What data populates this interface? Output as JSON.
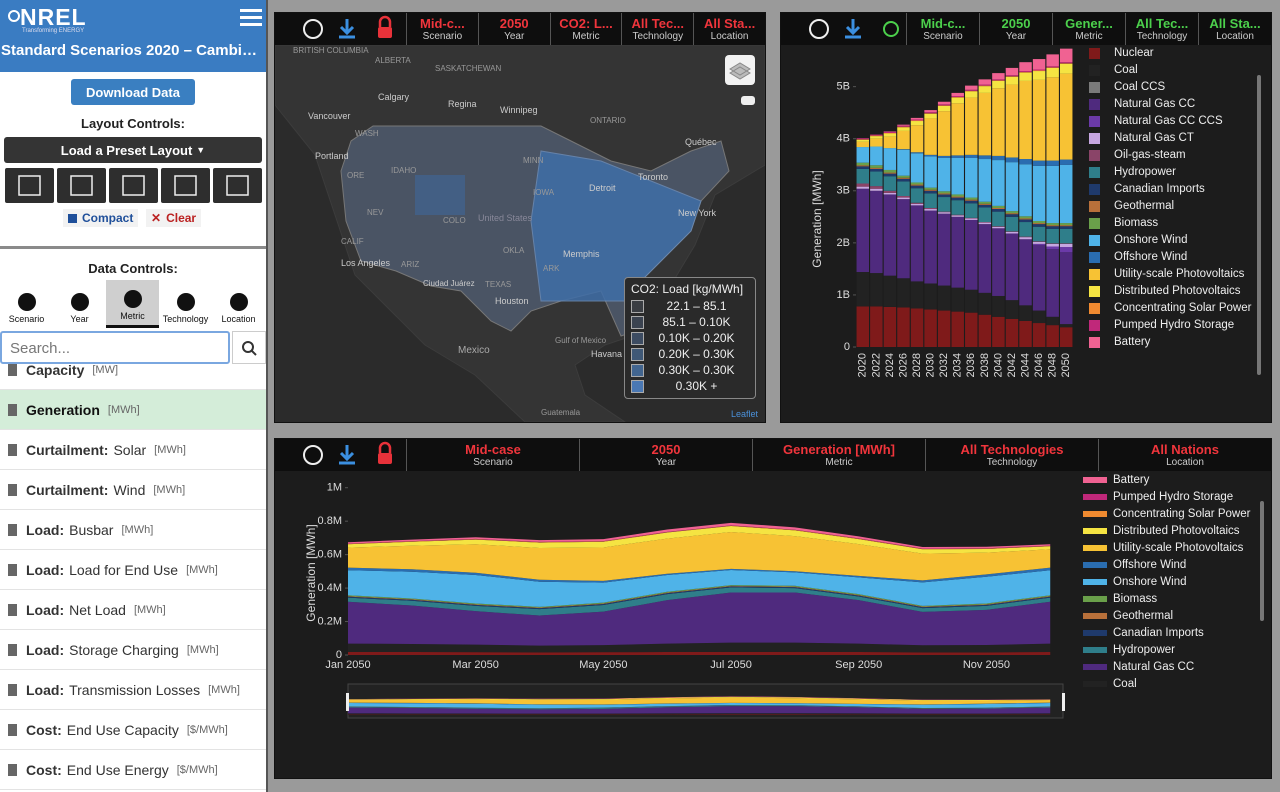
{
  "sidebar": {
    "logo": "NREL",
    "tagline": "Transforming ENERGY",
    "title": "Standard Scenarios 2020 – Cambi…",
    "download": "Download Data",
    "layout_heading": "Layout Controls:",
    "preset": "Load a Preset Layout",
    "compact": "Compact",
    "clear": "Clear",
    "data_heading": "Data Controls:",
    "tabs": [
      "Scenario",
      "Year",
      "Metric",
      "Technology",
      "Location"
    ],
    "search_placeholder": "Search...",
    "metrics": [
      {
        "group": "Capacity",
        "unit": "[MW]"
      },
      {
        "group": "Generation",
        "unit": "[MWh]"
      },
      {
        "group": "Curtailment:",
        "label": "Solar",
        "unit": "[MWh]"
      },
      {
        "group": "Curtailment:",
        "label": "Wind",
        "unit": "[MWh]"
      },
      {
        "group": "Load:",
        "label": "Busbar",
        "unit": "[MWh]"
      },
      {
        "group": "Load:",
        "label": "Load for End Use",
        "unit": "[MWh]"
      },
      {
        "group": "Load:",
        "label": "Net Load",
        "unit": "[MWh]"
      },
      {
        "group": "Load:",
        "label": "Storage Charging",
        "unit": "[MWh]"
      },
      {
        "group": "Load:",
        "label": "Transmission Losses",
        "unit": "[MWh]"
      },
      {
        "group": "Cost:",
        "label": "End Use Capacity",
        "unit": "[$/MWh]"
      },
      {
        "group": "Cost:",
        "label": "End Use Energy",
        "unit": "[$/MWh]"
      }
    ]
  },
  "map_panel": {
    "header": [
      {
        "value": "Mid-c...",
        "label": "Scenario"
      },
      {
        "value": "2050",
        "label": "Year"
      },
      {
        "value": "CO2: L...",
        "label": "Metric"
      },
      {
        "value": "All Tec...",
        "label": "Technology"
      },
      {
        "value": "All Sta...",
        "label": "Location"
      }
    ],
    "legend": {
      "title": "CO2: Load [kg/MWh]",
      "bins": [
        {
          "label": "22.1 – 85.1",
          "color": "#3a3d42"
        },
        {
          "label": "85.1 – 0.10K",
          "color": "#3b4350"
        },
        {
          "label": "0.10K – 0.20K",
          "color": "#3d4c62"
        },
        {
          "label": "0.20K – 0.30K",
          "color": "#3f5876"
        },
        {
          "label": "0.30K – 0.30K",
          "color": "#42658f"
        },
        {
          "label": "0.30K +",
          "color": "#4a78b4"
        }
      ]
    },
    "labels": [
      "BRITISH COLUMBIA",
      "ALBERTA",
      "SASKATCHEWAN",
      "Calgary",
      "Regina",
      "Winnipeg",
      "ONTARIO",
      "Vancouver",
      "Québec",
      "Portland",
      "Toronto",
      "Detroit",
      "New York",
      "United States",
      "Los Angeles",
      "Memphis",
      "Houston",
      "Ciudad Juárez",
      "Gulf of Mexico",
      "Mexico",
      "Havana",
      "Guatemala",
      "WASH",
      "ORE",
      "IDAHO",
      "NEV",
      "CALIF",
      "ARIZ",
      "COLO",
      "TEXAS",
      "OKLA",
      "MINN",
      "IOWA",
      "ARK"
    ],
    "attribution": "Leaflet"
  },
  "bar_panel": {
    "header": [
      {
        "value": "Mid-c...",
        "label": "Scenario"
      },
      {
        "value": "2050",
        "label": "Year"
      },
      {
        "value": "Gener...",
        "label": "Metric"
      },
      {
        "value": "All Tec...",
        "label": "Technology"
      },
      {
        "value": "All Sta...",
        "label": "Location"
      }
    ]
  },
  "area_panel": {
    "header": [
      {
        "value": "Mid-case",
        "label": "Scenario"
      },
      {
        "value": "2050",
        "label": "Year"
      },
      {
        "value": "Generation [MWh]",
        "label": "Metric"
      },
      {
        "value": "All Technologies",
        "label": "Technology"
      },
      {
        "value": "All Nations",
        "label": "Location"
      }
    ]
  },
  "chart_data": [
    {
      "type": "stacked-bar",
      "ylabel": "Generation [MWh]",
      "categories": [
        "2020",
        "2022",
        "2024",
        "2026",
        "2028",
        "2030",
        "2032",
        "2034",
        "2036",
        "2038",
        "2040",
        "2042",
        "2044",
        "2046",
        "2048",
        "2050"
      ],
      "ylim": [
        0,
        5800000000.0
      ],
      "yticks": [
        0,
        {
          "value": 1000000000.0,
          "label": "1B"
        },
        {
          "value": 2000000000.0,
          "label": "2B"
        },
        {
          "value": 3000000000.0,
          "label": "3B"
        },
        {
          "value": 4000000000.0,
          "label": "4B"
        },
        {
          "value": 5000000000.0,
          "label": "5B"
        }
      ],
      "grid": false,
      "series": [
        {
          "name": "Nuclear",
          "color": "#7f1a1a",
          "values": [
            780000000.0,
            780000000.0,
            770000000.0,
            760000000.0,
            740000000.0,
            720000000.0,
            700000000.0,
            680000000.0,
            660000000.0,
            620000000.0,
            580000000.0,
            540000000.0,
            500000000.0,
            460000000.0,
            420000000.0,
            380000000.0
          ]
        },
        {
          "name": "Coal",
          "color": "#222222",
          "values": [
            660000000.0,
            640000000.0,
            600000000.0,
            560000000.0,
            520000000.0,
            500000000.0,
            480000000.0,
            460000000.0,
            440000000.0,
            420000000.0,
            400000000.0,
            360000000.0,
            300000000.0,
            240000000.0,
            160000000.0,
            60000000.0
          ]
        },
        {
          "name": "Coal CCS",
          "color": "#7a7a7a",
          "values": [
            0,
            0,
            0,
            0,
            0,
            0,
            0,
            0,
            0,
            0,
            0,
            0,
            0,
            0,
            0,
            0
          ]
        },
        {
          "name": "Natural Gas CC",
          "color": "#4f2a7e",
          "values": [
            1600000000.0,
            1580000000.0,
            1560000000.0,
            1520000000.0,
            1460000000.0,
            1400000000.0,
            1380000000.0,
            1360000000.0,
            1340000000.0,
            1320000000.0,
            1300000000.0,
            1280000000.0,
            1260000000.0,
            1260000000.0,
            1300000000.0,
            1380000000.0
          ]
        },
        {
          "name": "Natural Gas CC CCS",
          "color": "#6b3aa8",
          "values": [
            0,
            0,
            0,
            0,
            0,
            0,
            0,
            0,
            0,
            0,
            0,
            0,
            10000000.0,
            20000000.0,
            50000000.0,
            100000000.0
          ]
        },
        {
          "name": "Natural Gas CT",
          "color": "#c6a6e0",
          "values": [
            40000000.0,
            40000000.0,
            30000000.0,
            30000000.0,
            30000000.0,
            30000000.0,
            30000000.0,
            30000000.0,
            30000000.0,
            30000000.0,
            30000000.0,
            30000000.0,
            40000000.0,
            40000000.0,
            50000000.0,
            60000000.0
          ]
        },
        {
          "name": "Oil-gas-steam",
          "color": "#8a4468",
          "values": [
            60000000.0,
            50000000.0,
            40000000.0,
            30000000.0,
            20000000.0,
            20000000.0,
            10000000.0,
            10000000.0,
            10000000.0,
            10000000.0,
            10000000.0,
            10000000.0,
            10000000.0,
            10000000.0,
            10000000.0,
            10000000.0
          ]
        },
        {
          "name": "Hydropower",
          "color": "#2f7e8a",
          "values": [
            280000000.0,
            280000000.0,
            280000000.0,
            280000000.0,
            280000000.0,
            280000000.0,
            280000000.0,
            280000000.0,
            280000000.0,
            280000000.0,
            280000000.0,
            280000000.0,
            280000000.0,
            280000000.0,
            280000000.0,
            280000000.0
          ]
        },
        {
          "name": "Canadian Imports",
          "color": "#1f3a6c",
          "values": [
            50000000.0,
            50000000.0,
            50000000.0,
            50000000.0,
            50000000.0,
            50000000.0,
            50000000.0,
            50000000.0,
            50000000.0,
            50000000.0,
            50000000.0,
            50000000.0,
            50000000.0,
            50000000.0,
            50000000.0,
            50000000.0
          ]
        },
        {
          "name": "Geothermal",
          "color": "#b8703a",
          "values": [
            20000000.0,
            20000000.0,
            20000000.0,
            20000000.0,
            20000000.0,
            20000000.0,
            20000000.0,
            20000000.0,
            20000000.0,
            20000000.0,
            20000000.0,
            20000000.0,
            20000000.0,
            20000000.0,
            20000000.0,
            20000000.0
          ]
        },
        {
          "name": "Biomass",
          "color": "#6aa04a",
          "values": [
            50000000.0,
            50000000.0,
            50000000.0,
            40000000.0,
            40000000.0,
            40000000.0,
            40000000.0,
            40000000.0,
            40000000.0,
            40000000.0,
            40000000.0,
            40000000.0,
            40000000.0,
            40000000.0,
            40000000.0,
            40000000.0
          ]
        },
        {
          "name": "Onshore Wind",
          "color": "#4fb3e8",
          "values": [
            300000000.0,
            360000000.0,
            420000000.0,
            500000000.0,
            560000000.0,
            600000000.0,
            640000000.0,
            700000000.0,
            760000000.0,
            820000000.0,
            880000000.0,
            940000000.0,
            1000000000.0,
            1060000000.0,
            1100000000.0,
            1120000000.0
          ]
        },
        {
          "name": "Offshore Wind",
          "color": "#2a6db0",
          "values": [
            0,
            0,
            0,
            10000000.0,
            20000000.0,
            30000000.0,
            40000000.0,
            50000000.0,
            60000000.0,
            70000000.0,
            80000000.0,
            90000000.0,
            100000000.0,
            100000000.0,
            100000000.0,
            100000000.0
          ]
        },
        {
          "name": "Utility-scale Photovoltaics",
          "color": "#f7c234",
          "values": [
            100000000.0,
            150000000.0,
            220000000.0,
            350000000.0,
            520000000.0,
            700000000.0,
            860000000.0,
            1000000000.0,
            1100000000.0,
            1200000000.0,
            1300000000.0,
            1400000000.0,
            1500000000.0,
            1550000000.0,
            1600000000.0,
            1650000000.0
          ]
        },
        {
          "name": "Distributed Photovoltaics",
          "color": "#f5e442",
          "values": [
            40000000.0,
            50000000.0,
            60000000.0,
            70000000.0,
            80000000.0,
            90000000.0,
            100000000.0,
            110000000.0,
            120000000.0,
            130000000.0,
            140000000.0,
            150000000.0,
            160000000.0,
            170000000.0,
            180000000.0,
            190000000.0
          ]
        },
        {
          "name": "Concentrating Solar Power",
          "color": "#f08a30",
          "values": [
            10000000.0,
            10000000.0,
            10000000.0,
            10000000.0,
            10000000.0,
            10000000.0,
            10000000.0,
            10000000.0,
            10000000.0,
            10000000.0,
            10000000.0,
            10000000.0,
            10000000.0,
            10000000.0,
            10000000.0,
            10000000.0
          ]
        },
        {
          "name": "Pumped Hydro Storage",
          "color": "#c0287a",
          "values": [
            20000000.0,
            20000000.0,
            20000000.0,
            20000000.0,
            20000000.0,
            20000000.0,
            20000000.0,
            20000000.0,
            20000000.0,
            20000000.0,
            20000000.0,
            20000000.0,
            20000000.0,
            20000000.0,
            20000000.0,
            20000000.0
          ]
        },
        {
          "name": "Battery",
          "color": "#f06292",
          "values": [
            0,
            0,
            10000000.0,
            20000000.0,
            30000000.0,
            40000000.0,
            50000000.0,
            60000000.0,
            80000000.0,
            100000000.0,
            120000000.0,
            140000000.0,
            170000000.0,
            200000000.0,
            230000000.0,
            260000000.0
          ]
        }
      ]
    },
    {
      "type": "stacked-area",
      "ylabel": "Generation [MWh]",
      "categories": [
        "Jan 2050",
        null,
        "Mar 2050",
        null,
        "May 2050",
        null,
        "Jul 2050",
        null,
        "Sep 2050",
        null,
        "Nov 2050",
        null
      ],
      "ylim": [
        0,
        1100000
      ],
      "yticks": [
        0,
        {
          "value": 200000,
          "label": "0.2M"
        },
        {
          "value": 400000,
          "label": "0.4M"
        },
        {
          "value": 600000,
          "label": "0.6M"
        },
        {
          "value": 800000,
          "label": "0.8M"
        },
        {
          "value": 1000000,
          "label": "1M"
        }
      ],
      "grid": false,
      "series": [
        {
          "name": "Nuclear",
          "color": "#7f1a1a",
          "values": [
            18000,
            18000,
            17000,
            16000,
            17000,
            18000,
            19000,
            19000,
            18000,
            16000,
            16000,
            18000
          ]
        },
        {
          "name": "Coal",
          "color": "#222222",
          "values": [
            50000,
            48000,
            45000,
            40000,
            42000,
            50000,
            55000,
            55000,
            50000,
            42000,
            44000,
            50000
          ]
        },
        {
          "name": "Natural Gas CC",
          "color": "#4f2a7e",
          "values": [
            250000,
            230000,
            200000,
            180000,
            200000,
            260000,
            300000,
            300000,
            260000,
            200000,
            210000,
            250000
          ]
        },
        {
          "name": "Hydropower",
          "color": "#2f7e8a",
          "values": [
            25000,
            28000,
            32000,
            38000,
            40000,
            36000,
            30000,
            26000,
            22000,
            22000,
            24000,
            25000
          ]
        },
        {
          "name": "Canadian Imports",
          "color": "#1f3a6c",
          "values": [
            6000,
            6000,
            6000,
            6000,
            6000,
            6000,
            6000,
            6000,
            6000,
            6000,
            6000,
            6000
          ]
        },
        {
          "name": "Geothermal",
          "color": "#b8703a",
          "values": [
            3000,
            3000,
            3000,
            3000,
            3000,
            3000,
            3000,
            3000,
            3000,
            3000,
            3000,
            3000
          ]
        },
        {
          "name": "Biomass",
          "color": "#6aa04a",
          "values": [
            5000,
            5000,
            5000,
            5000,
            5000,
            5000,
            5000,
            5000,
            5000,
            5000,
            5000,
            5000
          ]
        },
        {
          "name": "Onshore Wind",
          "color": "#4fb3e8",
          "values": [
            150000,
            160000,
            170000,
            150000,
            120000,
            100000,
            90000,
            80000,
            100000,
            140000,
            160000,
            150000
          ]
        },
        {
          "name": "Offshore Wind",
          "color": "#2a6db0",
          "values": [
            15000,
            15000,
            14000,
            12000,
            10000,
            8000,
            7000,
            7000,
            9000,
            12000,
            14000,
            15000
          ]
        },
        {
          "name": "Utility-scale Photovoltaics",
          "color": "#f7c234",
          "values": [
            120000,
            140000,
            170000,
            190000,
            200000,
            210000,
            220000,
            210000,
            190000,
            160000,
            130000,
            110000
          ]
        },
        {
          "name": "Distributed Photovoltaics",
          "color": "#f5e442",
          "values": [
            20000,
            24000,
            28000,
            32000,
            34000,
            36000,
            36000,
            34000,
            30000,
            26000,
            22000,
            18000
          ]
        },
        {
          "name": "Concentrating Solar Power",
          "color": "#f08a30",
          "values": [
            2000,
            2000,
            2000,
            2000,
            2000,
            2000,
            2000,
            2000,
            2000,
            2000,
            2000,
            2000
          ]
        },
        {
          "name": "Pumped Hydro Storage",
          "color": "#c0287a",
          "values": [
            2000,
            2000,
            2000,
            2000,
            2000,
            2000,
            2000,
            2000,
            2000,
            2000,
            2000,
            2000
          ]
        },
        {
          "name": "Battery",
          "color": "#f06292",
          "values": [
            8000,
            9000,
            10000,
            11000,
            12000,
            14000,
            15000,
            14000,
            12000,
            10000,
            9000,
            8000
          ]
        }
      ]
    }
  ]
}
